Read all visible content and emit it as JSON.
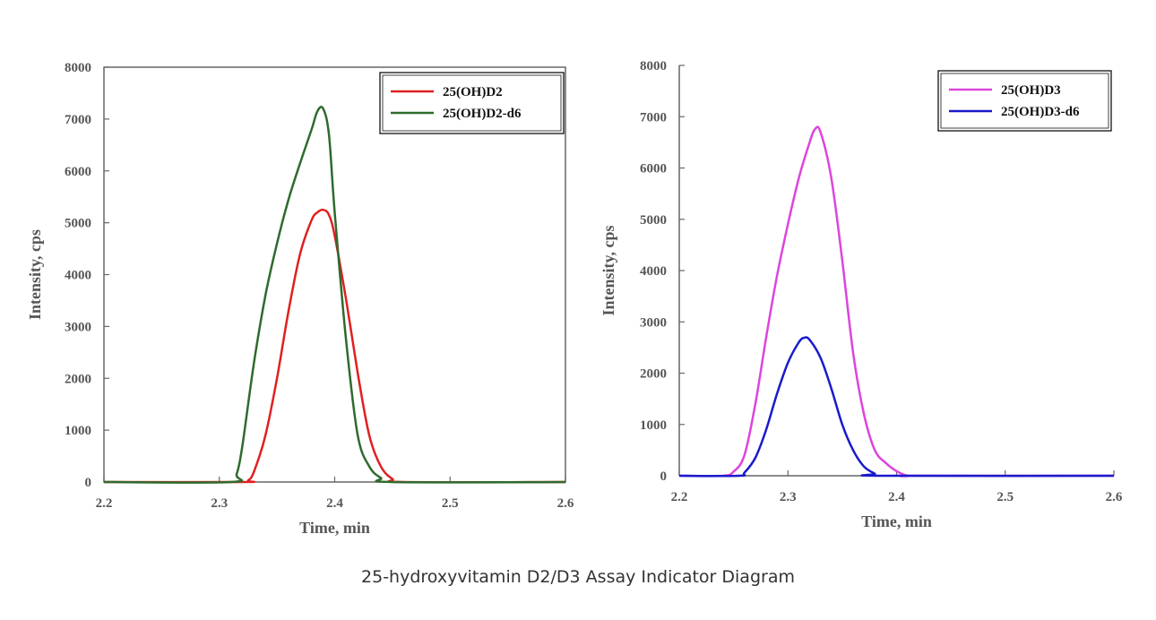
{
  "caption": "25-hydroxyvitamin D2/D3 Assay Indicator Diagram",
  "chart_data": [
    {
      "type": "line",
      "xlabel": "Time, min",
      "ylabel": "Intensity, cps",
      "xlim": [
        2.2,
        2.6
      ],
      "ylim": [
        0,
        8000
      ],
      "xticks": [
        "2.2",
        "2.3",
        "2.4",
        "2.5",
        "2.6"
      ],
      "yticks": [
        "0",
        "1000",
        "2000",
        "3000",
        "4000",
        "5000",
        "6000",
        "7000",
        "8000"
      ],
      "legend_position": "top-right",
      "series": [
        {
          "name": "25(OH)D2",
          "color": "#e02020",
          "x": [
            2.2,
            2.32,
            2.325,
            2.33,
            2.34,
            2.35,
            2.36,
            2.37,
            2.38,
            2.385,
            2.39,
            2.395,
            2.4,
            2.41,
            2.42,
            2.43,
            2.44,
            2.45,
            2.46,
            2.6
          ],
          "y": [
            0,
            0,
            30,
            200,
            900,
            2000,
            3300,
            4400,
            5050,
            5200,
            5250,
            5150,
            4750,
            3500,
            2100,
            900,
            300,
            60,
            0,
            0
          ]
        },
        {
          "name": "25(OH)D2-d6",
          "color": "#2e6b2e",
          "x": [
            2.2,
            2.31,
            2.315,
            2.32,
            2.33,
            2.34,
            2.35,
            2.36,
            2.37,
            2.38,
            2.385,
            2.39,
            2.395,
            2.4,
            2.41,
            2.42,
            2.43,
            2.44,
            2.45,
            2.6
          ],
          "y": [
            0,
            0,
            150,
            700,
            2300,
            3600,
            4600,
            5450,
            6150,
            6800,
            7150,
            7200,
            6700,
            5200,
            2700,
            900,
            300,
            80,
            0,
            0
          ]
        }
      ]
    },
    {
      "type": "line",
      "xlabel": "Time, min",
      "ylabel": "Intensity, cps",
      "xlim": [
        2.2,
        2.6
      ],
      "ylim": [
        0,
        8000
      ],
      "xticks": [
        "2.2",
        "2.3",
        "2.4",
        "2.5",
        "2.6"
      ],
      "yticks": [
        "0",
        "1000",
        "2000",
        "3000",
        "4000",
        "5000",
        "6000",
        "7000",
        "8000"
      ],
      "legend_position": "top-right",
      "series": [
        {
          "name": "25(OH)D3",
          "color": "#dd44dd",
          "x": [
            2.2,
            2.24,
            2.25,
            2.26,
            2.27,
            2.28,
            2.29,
            2.3,
            2.31,
            2.32,
            2.325,
            2.33,
            2.34,
            2.35,
            2.36,
            2.37,
            2.38,
            2.39,
            2.4,
            2.41,
            2.42,
            2.6
          ],
          "y": [
            0,
            0,
            80,
            400,
            1400,
            2700,
            3900,
            4900,
            5800,
            6500,
            6760,
            6700,
            5800,
            4200,
            2400,
            1200,
            500,
            250,
            90,
            0,
            0,
            0
          ]
        },
        {
          "name": "25(OH)D3-d6",
          "color": "#1a1acc",
          "x": [
            2.2,
            2.255,
            2.26,
            2.27,
            2.28,
            2.29,
            2.3,
            2.31,
            2.315,
            2.32,
            2.33,
            2.34,
            2.35,
            2.36,
            2.37,
            2.38,
            2.385,
            2.6
          ],
          "y": [
            0,
            0,
            60,
            350,
            900,
            1600,
            2200,
            2600,
            2690,
            2650,
            2300,
            1700,
            1000,
            500,
            180,
            40,
            0,
            0
          ]
        }
      ]
    }
  ]
}
